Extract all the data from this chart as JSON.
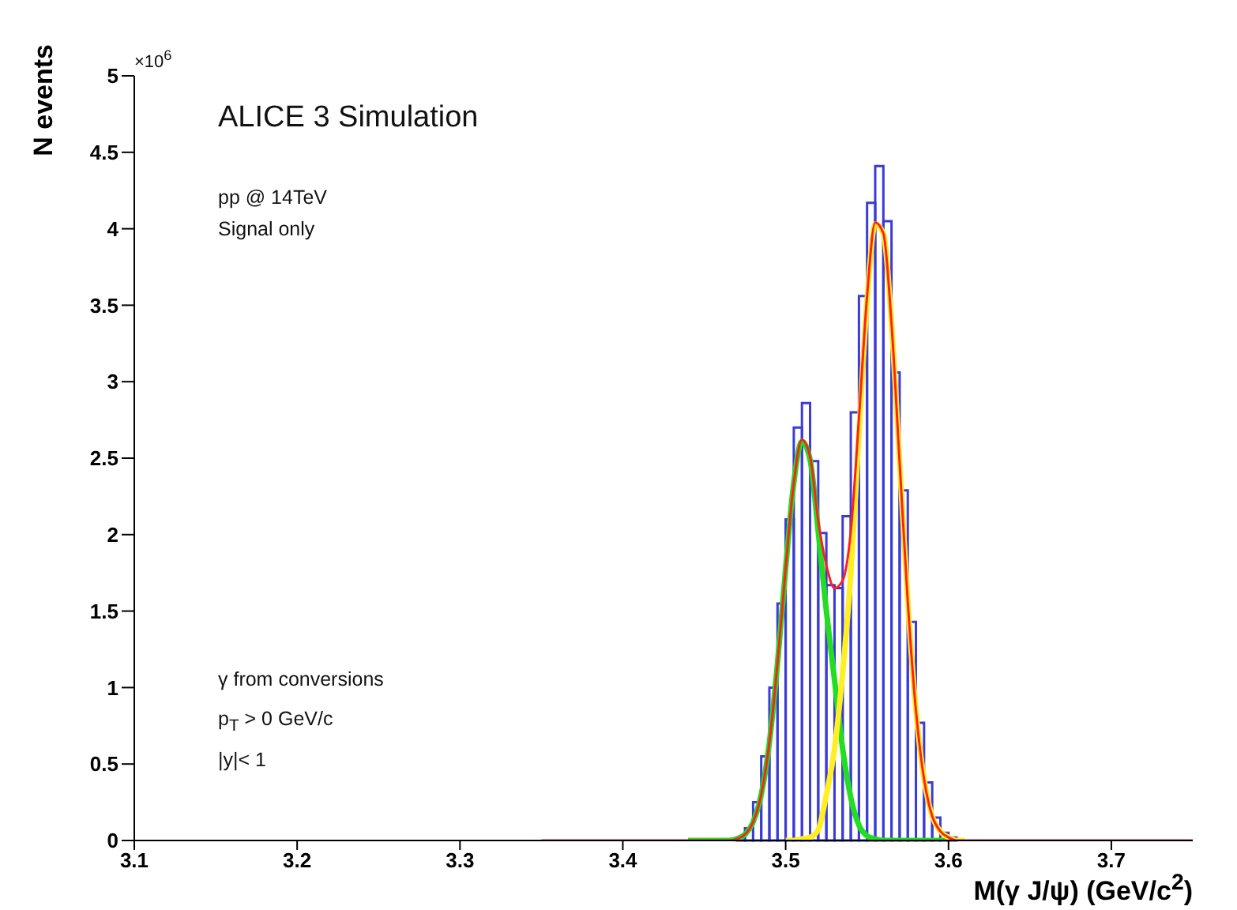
{
  "chart_data": {
    "type": "histogram",
    "xlabel": "M(γ J/ψ) (GeV/c$^{2}$)",
    "ylabel": "N events",
    "xlim": [
      3.1,
      3.75
    ],
    "xticks": [
      3.1,
      3.2,
      3.3,
      3.4,
      3.5,
      3.6,
      3.7
    ],
    "ylim": [
      0,
      5
    ],
    "yticks": [
      0,
      0.5,
      1,
      1.5,
      2,
      2.5,
      3,
      3.5,
      4,
      4.5,
      5
    ],
    "grid": false,
    "annotations": [
      "×10$^{6}$",
      "ALICE 3 Simulation",
      "pp @ 14TeV",
      "Signal only",
      "γ from conversions",
      "p$_{T}$ > 0 GeV/c",
      "|y|< 1"
    ],
    "series": [
      {
        "color": "#3b3bd6",
        "bins": [
          3.47,
          3.475,
          3.48,
          3.485,
          3.49,
          3.495,
          3.5,
          3.505,
          3.51,
          3.515,
          3.52,
          3.525,
          3.53,
          3.535,
          3.54,
          3.545,
          3.55,
          3.555,
          3.56,
          3.565,
          3.57,
          3.575,
          3.58,
          3.585,
          3.59,
          3.595,
          3.6,
          3.605
        ],
        "values": [
          0.02,
          0.08,
          0.25,
          0.55,
          1.0,
          1.55,
          2.1,
          2.7,
          2.86,
          2.48,
          2.01,
          1.67,
          1.65,
          2.12,
          2.8,
          3.56,
          4.17,
          4.41,
          4.05,
          3.06,
          2.29,
          1.43,
          0.77,
          0.38,
          0.15,
          0.05,
          0.02
        ]
      },
      {
        "type": "line",
        "color": "#ff2020",
        "x": [
          3.35,
          3.45,
          3.465,
          3.47,
          3.475,
          3.48,
          3.485,
          3.49,
          3.495,
          3.5,
          3.505,
          3.51,
          3.515,
          3.52,
          3.525,
          3.53,
          3.535,
          3.54,
          3.545,
          3.55,
          3.555,
          3.56,
          3.565,
          3.57,
          3.575,
          3.58,
          3.585,
          3.59,
          3.595,
          3.6,
          3.605,
          3.61,
          3.75
        ],
        "values": [
          0,
          0,
          0,
          0.01,
          0.04,
          0.12,
          0.3,
          0.64,
          1.16,
          1.78,
          2.34,
          2.62,
          2.51,
          2.09,
          1.8,
          1.65,
          1.7,
          2.02,
          2.76,
          3.56,
          4.04,
          3.97,
          3.38,
          2.47,
          1.56,
          0.85,
          0.4,
          0.16,
          0.06,
          0.02,
          0,
          0,
          0
        ]
      },
      {
        "type": "line",
        "color": "#22dd22",
        "x": [
          3.44,
          3.46,
          3.465,
          3.47,
          3.475,
          3.48,
          3.485,
          3.49,
          3.495,
          3.5,
          3.505,
          3.51,
          3.515,
          3.52,
          3.525,
          3.53,
          3.535,
          3.54,
          3.545,
          3.55,
          3.555,
          3.56,
          3.6
        ],
        "values": [
          0,
          0,
          0,
          0.01,
          0.04,
          0.12,
          0.3,
          0.64,
          1.16,
          1.78,
          2.34,
          2.61,
          2.49,
          2.02,
          1.5,
          1.05,
          0.6,
          0.28,
          0.1,
          0.03,
          0.01,
          0,
          0
        ]
      },
      {
        "type": "line",
        "color": "#ffee22",
        "x": [
          3.5,
          3.505,
          3.51,
          3.515,
          3.52,
          3.525,
          3.53,
          3.535,
          3.54,
          3.545,
          3.55,
          3.555,
          3.56,
          3.565,
          3.57,
          3.575,
          3.58,
          3.585,
          3.59,
          3.595,
          3.6,
          3.605,
          3.61
        ],
        "values": [
          0,
          0,
          0.01,
          0.02,
          0.07,
          0.3,
          0.6,
          1.1,
          1.74,
          2.66,
          3.53,
          4.03,
          3.97,
          3.38,
          2.47,
          1.56,
          0.85,
          0.4,
          0.16,
          0.06,
          0.02,
          0,
          0
        ]
      }
    ]
  }
}
